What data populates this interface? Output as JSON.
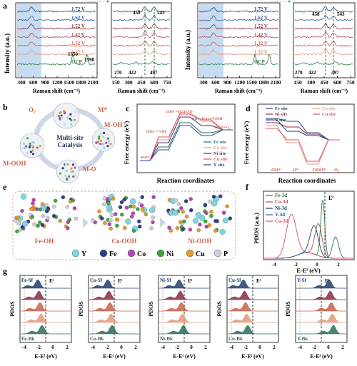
{
  "panel_letters": {
    "a": "a",
    "b": "b",
    "c": "c",
    "d": "d",
    "e": "e",
    "f": "f",
    "g": "g"
  },
  "panel_a": {
    "ylabel": "Intensity (a.u.)",
    "xlabel_main": "Raman shift (cm⁻¹)",
    "xlabel_zoom": "Raman shift (cm⁻¹)",
    "voltages": [
      "1.72 V",
      "1.62 V",
      "1.52 V",
      "1.42 V",
      "1.32 V",
      "1.22 V",
      "OCP"
    ],
    "main_ticks": [
      "300",
      "600",
      "900",
      "1200",
      "1500",
      "1800",
      "2100"
    ],
    "zoom_ticks": [
      "150",
      "300",
      "450",
      "600",
      "750"
    ],
    "left_peaks": {
      "p1350": "1350",
      "p1598": "1598"
    },
    "left_zoom_labels": {
      "p458": "458",
      "p543": "543",
      "p270": "270",
      "p422": "422",
      "p497": "497"
    },
    "right_zoom_labels": {
      "p458": "458",
      "p543": "543",
      "p270": "270",
      "p422": "422",
      "p497": "497"
    },
    "colors": [
      "#1f3f6e",
      "#3a5f94",
      "#8a2d3f",
      "#b04a5a",
      "#c8614a",
      "#e39a7a",
      "#2f7a45"
    ]
  },
  "panel_b": {
    "center": "Multi-site\nCatalysis",
    "labels": {
      "o2": "O₂",
      "mstar": "M*",
      "moh": "M-OH",
      "mo": "M-O",
      "mooh": "M-OOH"
    }
  },
  "panel_c": {
    "ylabel": "Free energy (eV)",
    "xlabel": "Reaction coordinates",
    "annotations": [
      "2OH⁻+H₂O+*O",
      "OH⁻+H₂O+*OOH",
      "3OH⁻+*OH",
      "2H₂O+O₂",
      "4OH⁻"
    ],
    "legend": [
      "Fe site",
      "Co site",
      "Ni site",
      "Cu site",
      "Y site"
    ]
  },
  "panel_d": {
    "ylabel": "Free energy (eV)",
    "xlabel": "Reaction coordinates",
    "legend": [
      "Fe site",
      "Ni site",
      "Y site",
      "Co site",
      "Cu site"
    ],
    "xticks": [
      "OH*",
      "O*",
      "OOH*",
      "O₂"
    ]
  },
  "panel_e": {
    "structures": [
      "Fe-OH",
      "Co-OOH",
      "Ni-OOH"
    ],
    "legend": [
      "Y",
      "Fe",
      "Co",
      "Ni",
      "Cu",
      "P"
    ],
    "legend_colors": [
      "#7fd6e0",
      "#2c3f8a",
      "#b446b4",
      "#3aa83a",
      "#e49a2c",
      "#cfcfd8"
    ]
  },
  "panel_f": {
    "ylabel": "PDOS (a.u.)",
    "xlabel": "E-Eᶠ (eV)",
    "ef": "Eᶠ",
    "legend": [
      "Fe-3d",
      "Co-3d",
      "Ni-3d",
      "Y-4d",
      "Cu-3d"
    ],
    "xticks": [
      "-4",
      "-2",
      "0",
      "2"
    ]
  },
  "panel_g": {
    "ylabel": "PDOS",
    "xlabel": "E-Eᶠ (eV)",
    "ef": "Eᶠ",
    "top_labels": [
      "Fe-Sf",
      "Co-Sf",
      "Ni-Sf",
      "Cu-Sf",
      "Y-Sf"
    ],
    "bottom_labels": [
      "Fe-Bk",
      "Co-Bk",
      "Ni-Bk",
      "Cu-Bk",
      "Y-Bk"
    ],
    "xticks": [
      "-4",
      "-2",
      "0",
      "2"
    ]
  }
}
